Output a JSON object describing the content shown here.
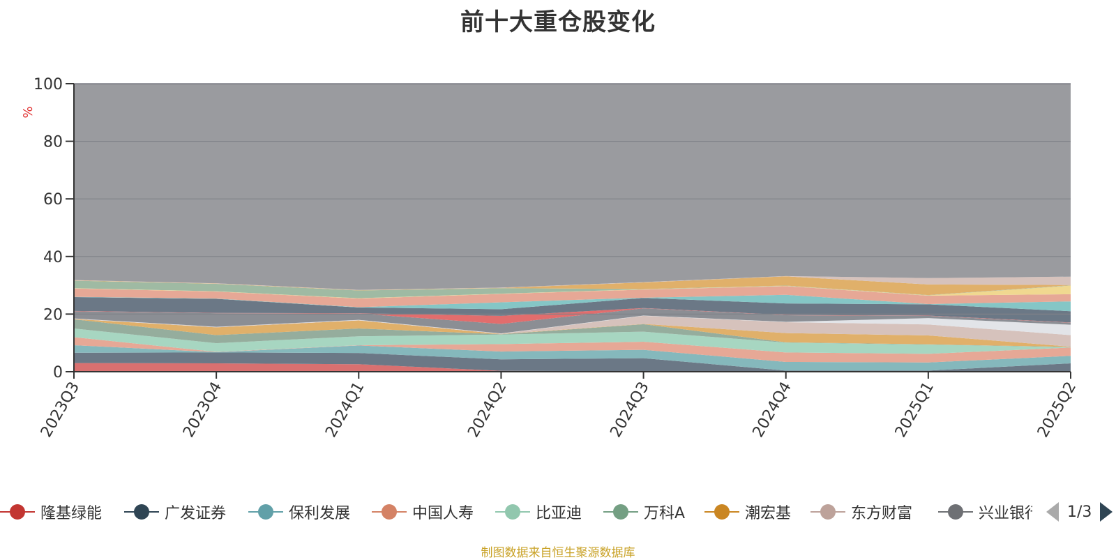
{
  "chart_title": "前十大重仓股变化",
  "footer_text": "制图数据来自恒生聚源数据库",
  "pager": {
    "text": "1/3"
  },
  "chart_data": {
    "type": "area",
    "title": "前十大重仓股变化",
    "ylabel": "%",
    "ylim": [
      0,
      100
    ],
    "yticks": [
      0,
      20,
      40,
      60,
      80,
      100
    ],
    "grid": true,
    "stacked": true,
    "categories": [
      "2023Q3",
      "2023Q4",
      "2024Q1",
      "2024Q2",
      "2024Q3",
      "2024Q4",
      "2025Q1",
      "2025Q2"
    ],
    "legend_position": "bottom",
    "series": [
      {
        "name": "隆基绿能",
        "color": "#c23531",
        "values": [
          3.0,
          2.9,
          2.6,
          0,
          0,
          0,
          0,
          0
        ]
      },
      {
        "name": "广发证券",
        "color": "#2f4554",
        "values": [
          3.6,
          3.8,
          3.9,
          4.3,
          4.7,
          0,
          0,
          2.9
        ]
      },
      {
        "name": "保利发展",
        "color": "#61a0a8",
        "values": [
          2.6,
          0,
          2.6,
          2.7,
          2.9,
          3.4,
          3.2,
          2.6
        ]
      },
      {
        "name": "中国人寿",
        "color": "#d48265",
        "values": [
          2.8,
          0,
          0,
          2.6,
          2.8,
          3.3,
          3.0,
          2.9
        ]
      },
      {
        "name": "比亚迪",
        "color": "#91c7ae",
        "values": [
          3.0,
          3.0,
          3.1,
          3.3,
          3.5,
          3.4,
          3.2,
          0
        ]
      },
      {
        "name": "万科A",
        "color": "#749f83",
        "values": [
          3.2,
          2.8,
          2.7,
          0,
          2.6,
          0,
          0,
          0
        ]
      },
      {
        "name": "潮宏基",
        "color": "#ca8622",
        "values": [
          0,
          2.7,
          2.8,
          0,
          0,
          3.2,
          3.1,
          0
        ]
      },
      {
        "name": "东方财富",
        "color": "#bda29a",
        "values": [
          0,
          0,
          0,
          0,
          2.8,
          3.8,
          3.8,
          4.0
        ]
      },
      {
        "name": "兴业银行",
        "color": "#6e7074",
        "values": [
          0,
          0,
          0,
          0,
          0,
          0,
          0,
          0
        ]
      }
    ]
  },
  "layers": [
    {
      "color": "#d97070",
      "top": [
        3.0,
        2.9,
        2.6,
        0.3,
        0.2,
        0.2,
        0.2,
        0.2
      ]
    },
    {
      "color": "#6b7886",
      "top": [
        6.6,
        6.7,
        6.5,
        4.3,
        4.7,
        0.4,
        0.4,
        2.9
      ]
    },
    {
      "color": "#85b8bc",
      "top": [
        9.2,
        6.8,
        9.1,
        7.0,
        7.6,
        3.4,
        3.2,
        5.5
      ]
    },
    {
      "color": "#e6a896",
      "top": [
        12.0,
        6.9,
        9.2,
        9.6,
        10.4,
        6.7,
        6.2,
        8.4
      ]
    },
    {
      "color": "#a7d6c1",
      "top": [
        15.0,
        9.9,
        12.3,
        12.9,
        13.9,
        10.1,
        9.4,
        8.5
      ]
    },
    {
      "color": "#95ad9d",
      "top": [
        18.2,
        12.7,
        15.0,
        13.0,
        16.5,
        10.2,
        9.5,
        8.6
      ]
    },
    {
      "color": "#e0b06a",
      "top": [
        18.3,
        15.4,
        17.8,
        13.1,
        16.6,
        13.4,
        12.6,
        8.7
      ]
    },
    {
      "color": "#d6c2bc",
      "top": [
        18.4,
        15.5,
        17.9,
        13.2,
        19.4,
        17.2,
        16.4,
        12.7
      ]
    },
    {
      "color": "#e2e4e8",
      "top": [
        18.5,
        15.6,
        18.0,
        13.3,
        19.5,
        17.3,
        18.6,
        16.3
      ]
    },
    {
      "color": "#8b8e94",
      "top": [
        21.0,
        20.3,
        20.2,
        16.6,
        22.0,
        19.6,
        19.4,
        17.0
      ]
    },
    {
      "color": "#e26d6d",
      "top": [
        21.1,
        20.4,
        20.3,
        19.4,
        22.1,
        19.7,
        19.5,
        17.1
      ]
    },
    {
      "color": "#6b7886",
      "top": [
        25.9,
        25.3,
        22.3,
        21.7,
        25.6,
        23.7,
        23.4,
        21.0
      ]
    },
    {
      "color": "#85c6c6",
      "top": [
        26.0,
        25.4,
        22.4,
        24.1,
        25.7,
        26.7,
        23.5,
        24.4
      ]
    },
    {
      "color": "#e6a896",
      "top": [
        28.9,
        27.8,
        25.4,
        27.0,
        28.5,
        29.7,
        26.4,
        26.9
      ]
    },
    {
      "color": "#f0d890",
      "top": [
        29.0,
        27.9,
        25.5,
        27.1,
        28.6,
        29.8,
        26.5,
        29.9
      ]
    },
    {
      "color": "#9fbaa3",
      "top": [
        31.6,
        30.5,
        28.2,
        29.0,
        28.7,
        29.9,
        26.6,
        30.0
      ]
    },
    {
      "color": "#e0b06a",
      "top": [
        31.7,
        30.6,
        28.3,
        29.1,
        31.0,
        33.1,
        30.3,
        30.1
      ]
    },
    {
      "color": "#d6c2bc",
      "top": [
        31.8,
        30.7,
        28.4,
        29.2,
        31.1,
        33.2,
        32.5,
        33.0
      ]
    },
    {
      "color": "#9a9b9f",
      "top": [
        100,
        100,
        100,
        100,
        100,
        100,
        100,
        100
      ]
    }
  ]
}
